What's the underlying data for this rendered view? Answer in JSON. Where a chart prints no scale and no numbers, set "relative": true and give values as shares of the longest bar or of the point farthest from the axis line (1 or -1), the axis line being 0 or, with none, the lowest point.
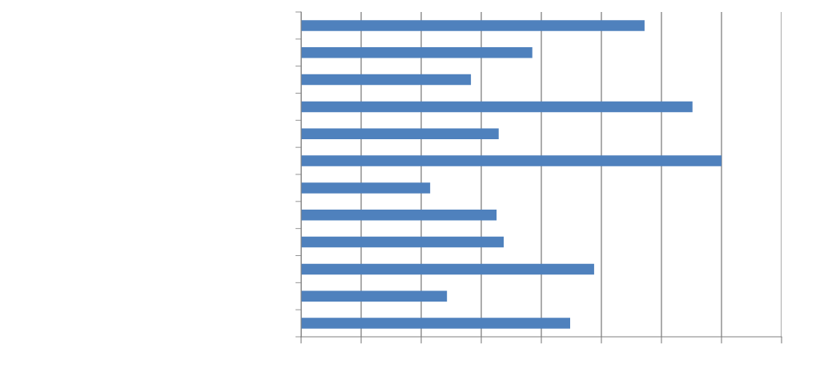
{
  "chart_data": {
    "type": "bar",
    "orientation": "horizontal",
    "relative": true,
    "categories": [
      null,
      null,
      null,
      null,
      null,
      null,
      null,
      null,
      null,
      null,
      null,
      null
    ],
    "values": [
      0.817,
      0.55,
      0.404,
      0.931,
      0.47,
      1,
      0.307,
      0.465,
      0.482,
      0.697,
      0.347,
      0.64
    ],
    "color": "#4f81bd",
    "grid": "x",
    "tick_labels": false
  }
}
